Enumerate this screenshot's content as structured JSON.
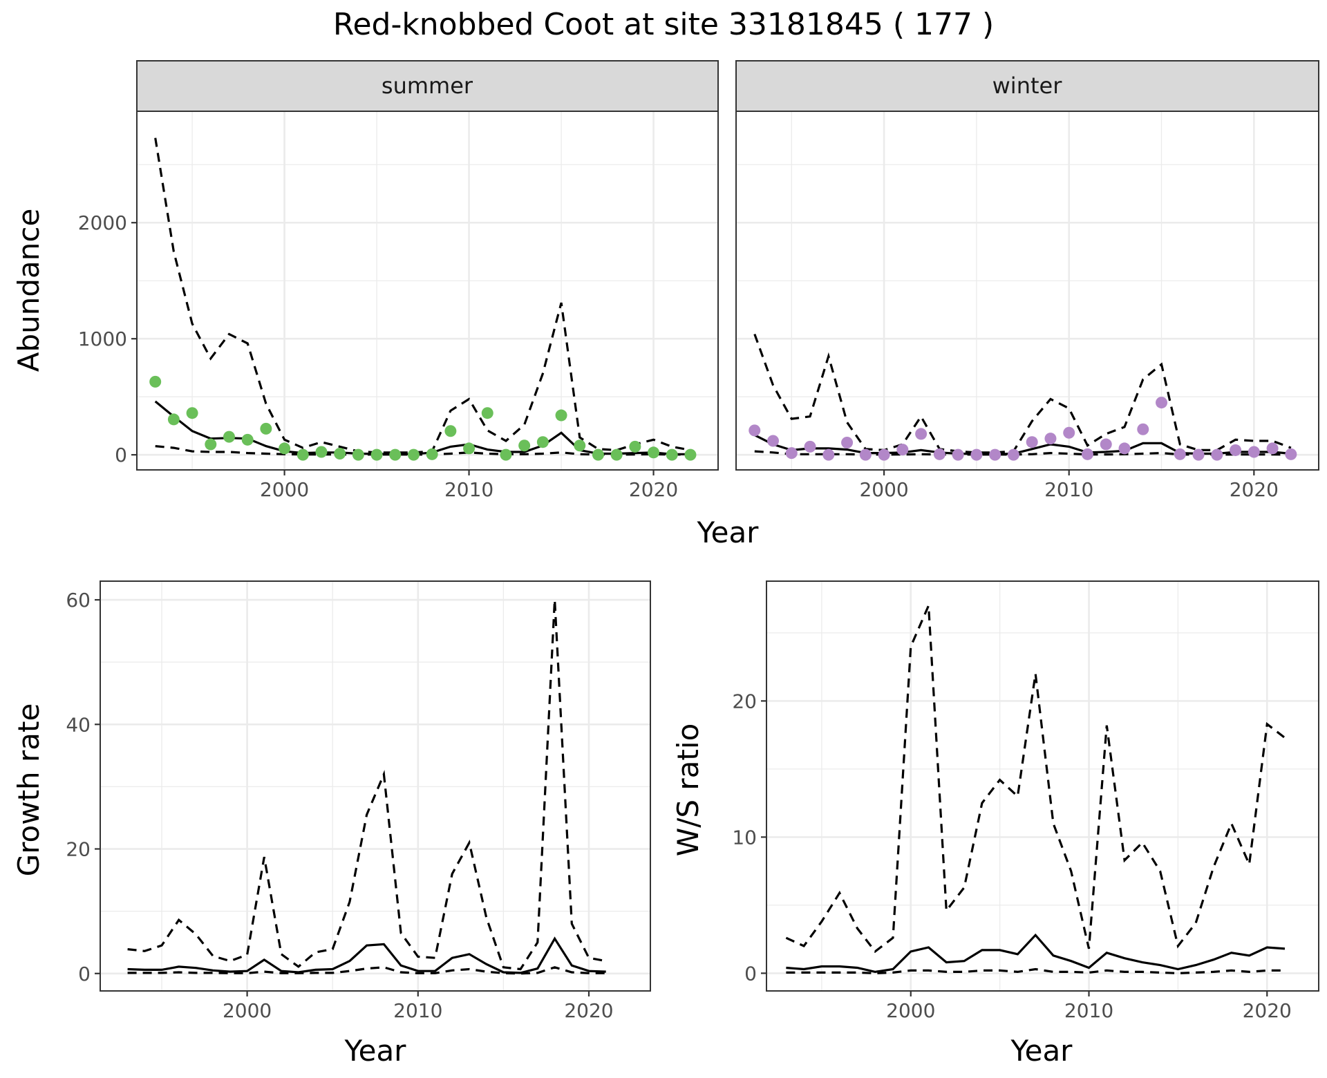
{
  "title": "Red-knobbed Coot at site 33181845 ( 177 )",
  "colors": {
    "summer": "#6abf59",
    "winter": "#b287c8",
    "line": "#000000",
    "strip": "#d9d9d9"
  },
  "chart_data": [
    {
      "type": "line",
      "panel": "abundance",
      "ylabel": "Abundance",
      "xlabel": "Year",
      "xlim": [
        1992,
        2023.5
      ],
      "ylim": [
        -130,
        2960
      ],
      "xticks": [
        2000,
        2010,
        2020
      ],
      "yticks": [
        0,
        1000,
        2000
      ],
      "grid": true,
      "facets": [
        {
          "strip": "summer",
          "point_color": "#6abf59",
          "x": [
            1993,
            1994,
            1995,
            1996,
            1997,
            1998,
            1999,
            2000,
            2001,
            2002,
            2003,
            2004,
            2005,
            2006,
            2007,
            2008,
            2009,
            2010,
            2011,
            2012,
            2013,
            2014,
            2015,
            2016,
            2017,
            2018,
            2019,
            2020,
            2021,
            2022
          ],
          "points": [
            630,
            305,
            360,
            90,
            155,
            130,
            225,
            55,
            0,
            25,
            10,
            0,
            0,
            0,
            0,
            5,
            205,
            55,
            360,
            0,
            80,
            110,
            340,
            80,
            0,
            0,
            70,
            20,
            0,
            0
          ],
          "series": [
            {
              "style": "solid",
              "values": [
                460,
                330,
                205,
                140,
                145,
                140,
                75,
                30,
                15,
                20,
                20,
                10,
                8,
                5,
                5,
                20,
                70,
                90,
                45,
                25,
                25,
                80,
                190,
                40,
                10,
                10,
                15,
                20,
                5,
                5
              ]
            },
            {
              "style": "dashed",
              "values": [
                2730,
                1750,
                1130,
                830,
                1040,
                960,
                440,
                130,
                60,
                110,
                70,
                30,
                20,
                20,
                20,
                30,
                380,
                480,
                210,
                120,
                260,
                700,
                1310,
                150,
                50,
                40,
                90,
                130,
                70,
                40
              ]
            },
            {
              "style": "dashed",
              "values": [
                75,
                60,
                30,
                25,
                25,
                15,
                10,
                5,
                3,
                3,
                3,
                2,
                2,
                2,
                2,
                3,
                10,
                20,
                10,
                5,
                5,
                10,
                20,
                5,
                2,
                2,
                3,
                5,
                2,
                2
              ]
            }
          ]
        },
        {
          "strip": "winter",
          "point_color": "#b287c8",
          "x": [
            1993,
            1994,
            1995,
            1996,
            1997,
            1998,
            1999,
            2000,
            2001,
            2002,
            2003,
            2004,
            2005,
            2006,
            2007,
            2008,
            2009,
            2010,
            2011,
            2012,
            2013,
            2014,
            2015,
            2016,
            2017,
            2018,
            2019,
            2020,
            2021,
            2022
          ],
          "points": [
            210,
            120,
            15,
            70,
            0,
            105,
            0,
            0,
            45,
            180,
            5,
            0,
            0,
            0,
            0,
            110,
            140,
            190,
            5,
            90,
            55,
            220,
            450,
            5,
            0,
            0,
            40,
            25,
            55,
            5
          ],
          "series": [
            {
              "style": "solid",
              "values": [
                170,
                90,
                40,
                55,
                55,
                45,
                15,
                15,
                20,
                40,
                20,
                10,
                8,
                5,
                10,
                50,
                90,
                70,
                20,
                25,
                35,
                100,
                100,
                15,
                10,
                10,
                25,
                25,
                25,
                10
              ]
            },
            {
              "style": "dashed",
              "values": [
                1040,
                600,
                310,
                330,
                850,
                280,
                50,
                40,
                90,
                330,
                50,
                30,
                20,
                20,
                30,
                290,
                480,
                400,
                80,
                180,
                240,
                650,
                780,
                90,
                40,
                40,
                130,
                120,
                120,
                60
              ]
            },
            {
              "style": "dashed",
              "values": [
                30,
                20,
                5,
                5,
                5,
                5,
                2,
                2,
                3,
                5,
                3,
                2,
                2,
                2,
                2,
                5,
                15,
                10,
                3,
                3,
                5,
                10,
                15,
                3,
                2,
                2,
                3,
                3,
                3,
                2
              ]
            }
          ]
        }
      ]
    },
    {
      "type": "line",
      "panel": "growth",
      "ylabel": "Growth rate",
      "xlabel": "Year",
      "xlim": [
        1991.4,
        2023.6
      ],
      "ylim": [
        -2.8,
        63
      ],
      "xticks": [
        2000,
        2010,
        2020
      ],
      "yticks": [
        0,
        20,
        40,
        60
      ],
      "grid": true,
      "x": [
        1993,
        1994,
        1995,
        1996,
        1997,
        1998,
        1999,
        2000,
        2001,
        2002,
        2003,
        2004,
        2005,
        2006,
        2007,
        2008,
        2009,
        2010,
        2011,
        2012,
        2013,
        2014,
        2015,
        2016,
        2017,
        2018,
        2019,
        2020,
        2021
      ],
      "series": [
        {
          "style": "solid",
          "values": [
            0.7,
            0.6,
            0.6,
            1.1,
            0.9,
            0.5,
            0.3,
            0.4,
            2.2,
            0.4,
            0.2,
            0.6,
            0.7,
            2.0,
            4.5,
            4.7,
            1.3,
            0.4,
            0.4,
            2.5,
            3.1,
            1.5,
            0.2,
            0.1,
            0.8,
            5.6,
            1.3,
            0.4,
            0.3
          ]
        },
        {
          "style": "dashed",
          "values": [
            3.9,
            3.6,
            4.5,
            8.6,
            6.3,
            2.8,
            2.0,
            3.0,
            18.7,
            3.1,
            1.1,
            3.4,
            3.9,
            11.5,
            25.5,
            32.0,
            6.5,
            2.7,
            2.5,
            16.0,
            21.0,
            9.0,
            1.0,
            0.7,
            5.0,
            60.0,
            8.0,
            2.5,
            2.0
          ]
        },
        {
          "style": "dashed",
          "values": [
            0.1,
            0.1,
            0.1,
            0.2,
            0.1,
            0.1,
            0.05,
            0.05,
            0.3,
            0.05,
            0.05,
            0.1,
            0.1,
            0.4,
            0.8,
            1.0,
            0.2,
            0.05,
            0.05,
            0.5,
            0.7,
            0.3,
            0.05,
            0.0,
            0.1,
            1.0,
            0.2,
            0.05,
            0.05
          ]
        }
      ]
    },
    {
      "type": "line",
      "panel": "ratio",
      "ylabel": "W/S ratio",
      "xlabel": "Year",
      "xlim": [
        1991.9,
        2022.9
      ],
      "ylim": [
        -1.3,
        28.8
      ],
      "xticks": [
        2000,
        2010,
        2020
      ],
      "yticks": [
        0,
        10,
        20
      ],
      "grid": true,
      "x": [
        1993,
        1994,
        1995,
        1996,
        1997,
        1998,
        1999,
        2000,
        2001,
        2002,
        2003,
        2004,
        2005,
        2006,
        2007,
        2008,
        2009,
        2010,
        2011,
        2012,
        2013,
        2014,
        2015,
        2016,
        2017,
        2018,
        2019,
        2020,
        2021
      ],
      "series": [
        {
          "style": "solid",
          "values": [
            0.4,
            0.3,
            0.5,
            0.5,
            0.4,
            0.1,
            0.3,
            1.6,
            1.9,
            0.8,
            0.9,
            1.7,
            1.7,
            1.4,
            2.8,
            1.3,
            0.9,
            0.4,
            1.5,
            1.1,
            0.8,
            0.6,
            0.3,
            0.6,
            1.0,
            1.5,
            1.3,
            1.9,
            1.8
          ]
        },
        {
          "style": "dashed",
          "values": [
            2.6,
            2.0,
            3.8,
            5.9,
            3.3,
            1.6,
            2.6,
            24.0,
            27.0,
            4.6,
            6.3,
            12.5,
            14.2,
            13.0,
            22.0,
            11.0,
            7.5,
            1.8,
            18.2,
            8.3,
            9.6,
            7.5,
            2.0,
            3.7,
            7.8,
            11.0,
            8.0,
            18.3,
            17.3
          ]
        },
        {
          "style": "dashed",
          "values": [
            0.05,
            0.05,
            0.05,
            0.05,
            0.05,
            0.0,
            0.05,
            0.2,
            0.2,
            0.1,
            0.1,
            0.2,
            0.2,
            0.1,
            0.3,
            0.1,
            0.1,
            0.05,
            0.2,
            0.1,
            0.1,
            0.05,
            0.0,
            0.05,
            0.1,
            0.2,
            0.1,
            0.2,
            0.2
          ]
        }
      ]
    }
  ]
}
